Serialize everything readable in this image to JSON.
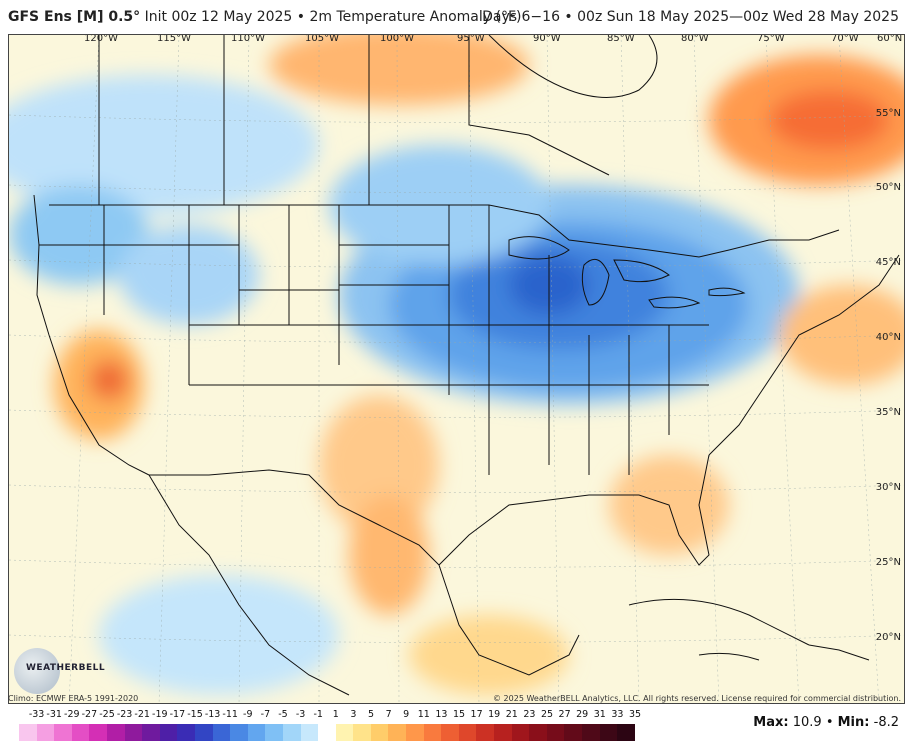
{
  "header": {
    "model": "GFS Ens [M] 0.5°",
    "init": "Init 00z 12 May 2025 • 2m Temperature Anomaly (°F)",
    "valid": "Days 6−16 • 00z Sun 18 May 2025—00z Wed 28 May 2025"
  },
  "map": {
    "lon_labels": [
      "120°W",
      "115°W",
      "110°W",
      "105°W",
      "100°W",
      "95°W",
      "90°W",
      "85°W",
      "80°W",
      "75°W",
      "70°W",
      "60°N"
    ],
    "lat_labels": [
      "55°N",
      "50°N",
      "45°N",
      "40°N",
      "35°N",
      "30°N",
      "25°N",
      "20°N"
    ]
  },
  "footer": {
    "climo": "Climo: ECMWF ERA-5 1991-2020",
    "copyright": "© 2025 WeatherBELL Analytics, LLC. All rights reserved. License required for commercial distribution.",
    "logo_text": "WEATHERBELL",
    "max_label": "Max:",
    "max_value": "10.9",
    "min_label": "Min:",
    "min_value": "-8.2"
  },
  "legend": {
    "ticks": [
      "-33",
      "-31",
      "-29",
      "-27",
      "-25",
      "-23",
      "-21",
      "-19",
      "-17",
      "-15",
      "-13",
      "-11",
      "-9",
      "-7",
      "-5",
      "-3",
      "-1",
      "1",
      "3",
      "5",
      "7",
      "9",
      "11",
      "13",
      "15",
      "17",
      "19",
      "21",
      "23",
      "25",
      "27",
      "29",
      "31",
      "33",
      "35"
    ],
    "colors": [
      "#f9c6ee",
      "#f59fe2",
      "#ef74d3",
      "#e44ec5",
      "#d42fb5",
      "#b11ea6",
      "#8f1a9d",
      "#6f1a9e",
      "#4e1fa7",
      "#3a2cb5",
      "#3245c4",
      "#3a66d6",
      "#4a88e4",
      "#62a6ef",
      "#7fc0f5",
      "#a2d6f9",
      "#c7e8fc",
      "#ffffff",
      "#fff3b0",
      "#ffe38a",
      "#ffcd6a",
      "#ffb357",
      "#ff974a",
      "#f97a3e",
      "#ee5f33",
      "#df472b",
      "#cc3124",
      "#b7211f",
      "#a0161c",
      "#8a0f1a",
      "#760c1a",
      "#620a19",
      "#4f0918",
      "#3d0716",
      "#2c0513"
    ]
  }
}
